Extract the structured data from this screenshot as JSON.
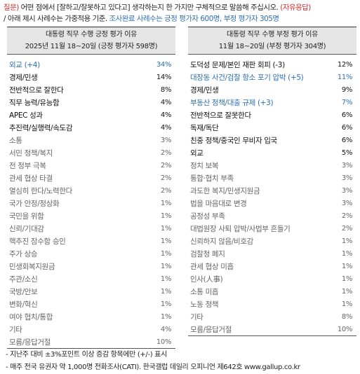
{
  "question": {
    "prefix": "질문)",
    "text": " 어떤 점에서 [잘하고/잘못하고 있다고] 생각하는지 한 가지만 구체적으로 말씀해 주십시오.",
    "type": "(자유응답)",
    "note_part1": "/ 아래 제시 사례수는 가중적용 기준. ",
    "note_part2": "조사완료 사례수는 긍정 평가자 600명, 부정 평가자 305명"
  },
  "left_table": {
    "title": "대통령 직무 수행 긍정 평가 이유",
    "subtitle": "2025년 11월 18~20일 (긍정 평가자 598명)",
    "rows": [
      {
        "label": "외교 (+4)",
        "value": "34%",
        "style": "bl"
      },
      {
        "label": "경제/민생",
        "value": "14%",
        "style": "dk"
      },
      {
        "label": "전반적으로 잘한다",
        "value": "8%",
        "style": "dk"
      },
      {
        "label": "직무 능력/유능함",
        "value": "4%",
        "style": "dk"
      },
      {
        "label": "APEC 성과",
        "value": "4%",
        "style": "dk"
      },
      {
        "label": "추진력/실행력/속도감",
        "value": "4%",
        "style": "dk"
      },
      {
        "label": "소통",
        "value": "3%",
        "style": "gr"
      },
      {
        "label": "서민 정책/복지",
        "value": "2%",
        "style": "gr"
      },
      {
        "label": "전 정부 극복",
        "value": "2%",
        "style": "gr"
      },
      {
        "label": "관세 협상 타결",
        "value": "2%",
        "style": "gr"
      },
      {
        "label": "열심히 한다/노력한다",
        "value": "2%",
        "style": "gr"
      },
      {
        "label": "국가 안정/정상화",
        "value": "1%",
        "style": "gr"
      },
      {
        "label": "국민을 위함",
        "value": "1%",
        "style": "gr"
      },
      {
        "label": "신뢰/기대감",
        "value": "1%",
        "style": "gr"
      },
      {
        "label": "핵추진 잠수함 승인",
        "value": "1%",
        "style": "gr"
      },
      {
        "label": "주가 상승",
        "value": "1%",
        "style": "gr"
      },
      {
        "label": "민생회복지원금",
        "value": "1%",
        "style": "gr"
      },
      {
        "label": "주관/소신",
        "value": "1%",
        "style": "gr"
      },
      {
        "label": "국방/안보",
        "value": "1%",
        "style": "gr"
      },
      {
        "label": "변화/혁신",
        "value": "1%",
        "style": "gr"
      },
      {
        "label": "여야 협치/통합",
        "value": "1%",
        "style": "gr"
      },
      {
        "label": "기타",
        "value": "4%",
        "style": "gr"
      },
      {
        "label": "모름/응답거절",
        "value": "10%",
        "style": "gr"
      }
    ]
  },
  "right_table": {
    "title": "대통령 직무 수행 부정 평가 이유",
    "subtitle": "11월 18~20일 (부정 평가자 304명)",
    "rows": [
      {
        "label": "도덕성 문제/본인 재판 회피 (-3)",
        "value": "12%",
        "style": "dk"
      },
      {
        "label": "대장동 사건/검찰 항소 포기 압박 (+5)",
        "value": "11%",
        "style": "bl"
      },
      {
        "label": "경제/민생",
        "value": "9%",
        "style": "dk"
      },
      {
        "label": "부동산 정책/대출 규제 (+3)",
        "value": "7%",
        "style": "bl"
      },
      {
        "label": "전반적으로 잘못한다",
        "value": "6%",
        "style": "dk"
      },
      {
        "label": "독재/독단",
        "value": "6%",
        "style": "dk"
      },
      {
        "label": "친중 정책/중국인 무비자 입국",
        "value": "6%",
        "style": "dk"
      },
      {
        "label": "외교",
        "value": "5%",
        "style": "dk"
      },
      {
        "label": "정치 보복",
        "value": "3%",
        "style": "gr"
      },
      {
        "label": "통합·협치 부족",
        "value": "3%",
        "style": "gr"
      },
      {
        "label": "과도한 복지/민생지원금",
        "value": "3%",
        "style": "gr"
      },
      {
        "label": "법을 마음대로 변경",
        "value": "3%",
        "style": "gr"
      },
      {
        "label": "공정성 부족",
        "value": "2%",
        "style": "gr"
      },
      {
        "label": "대법원장 사퇴 압박/사법부 흔들기",
        "value": "2%",
        "style": "gr"
      },
      {
        "label": "신뢰하지 않음/비호감",
        "value": "1%",
        "style": "gr"
      },
      {
        "label": "검찰청 폐지",
        "value": "1%",
        "style": "gr"
      },
      {
        "label": "관세 협상 미흡",
        "value": "1%",
        "style": "gr"
      },
      {
        "label": "인사(人事)",
        "value": "1%",
        "style": "gr"
      },
      {
        "label": "소통 미흡",
        "value": "1%",
        "style": "gr"
      },
      {
        "label": "노동 정책",
        "value": "1%",
        "style": "gr"
      },
      {
        "label": "기타",
        "value": "8%",
        "style": "gr"
      },
      {
        "label": "모름/응답거절",
        "value": "10%",
        "style": "gr"
      }
    ]
  },
  "footnotes": [
    "- 지난주 대비 ±3%포인트 이상 증감 항목에만 (+/-) 표시",
    "- 매주 전국 유권자 약 1,000명 전화조사(CATI). 한국갤럽 데일리 오피니언 제642호 www.gallup.co.kr"
  ],
  "colors": {
    "highlight_red": "#d9282c",
    "highlight_blue": "#2e6fb1",
    "header_bg": "#e6e6e6"
  }
}
